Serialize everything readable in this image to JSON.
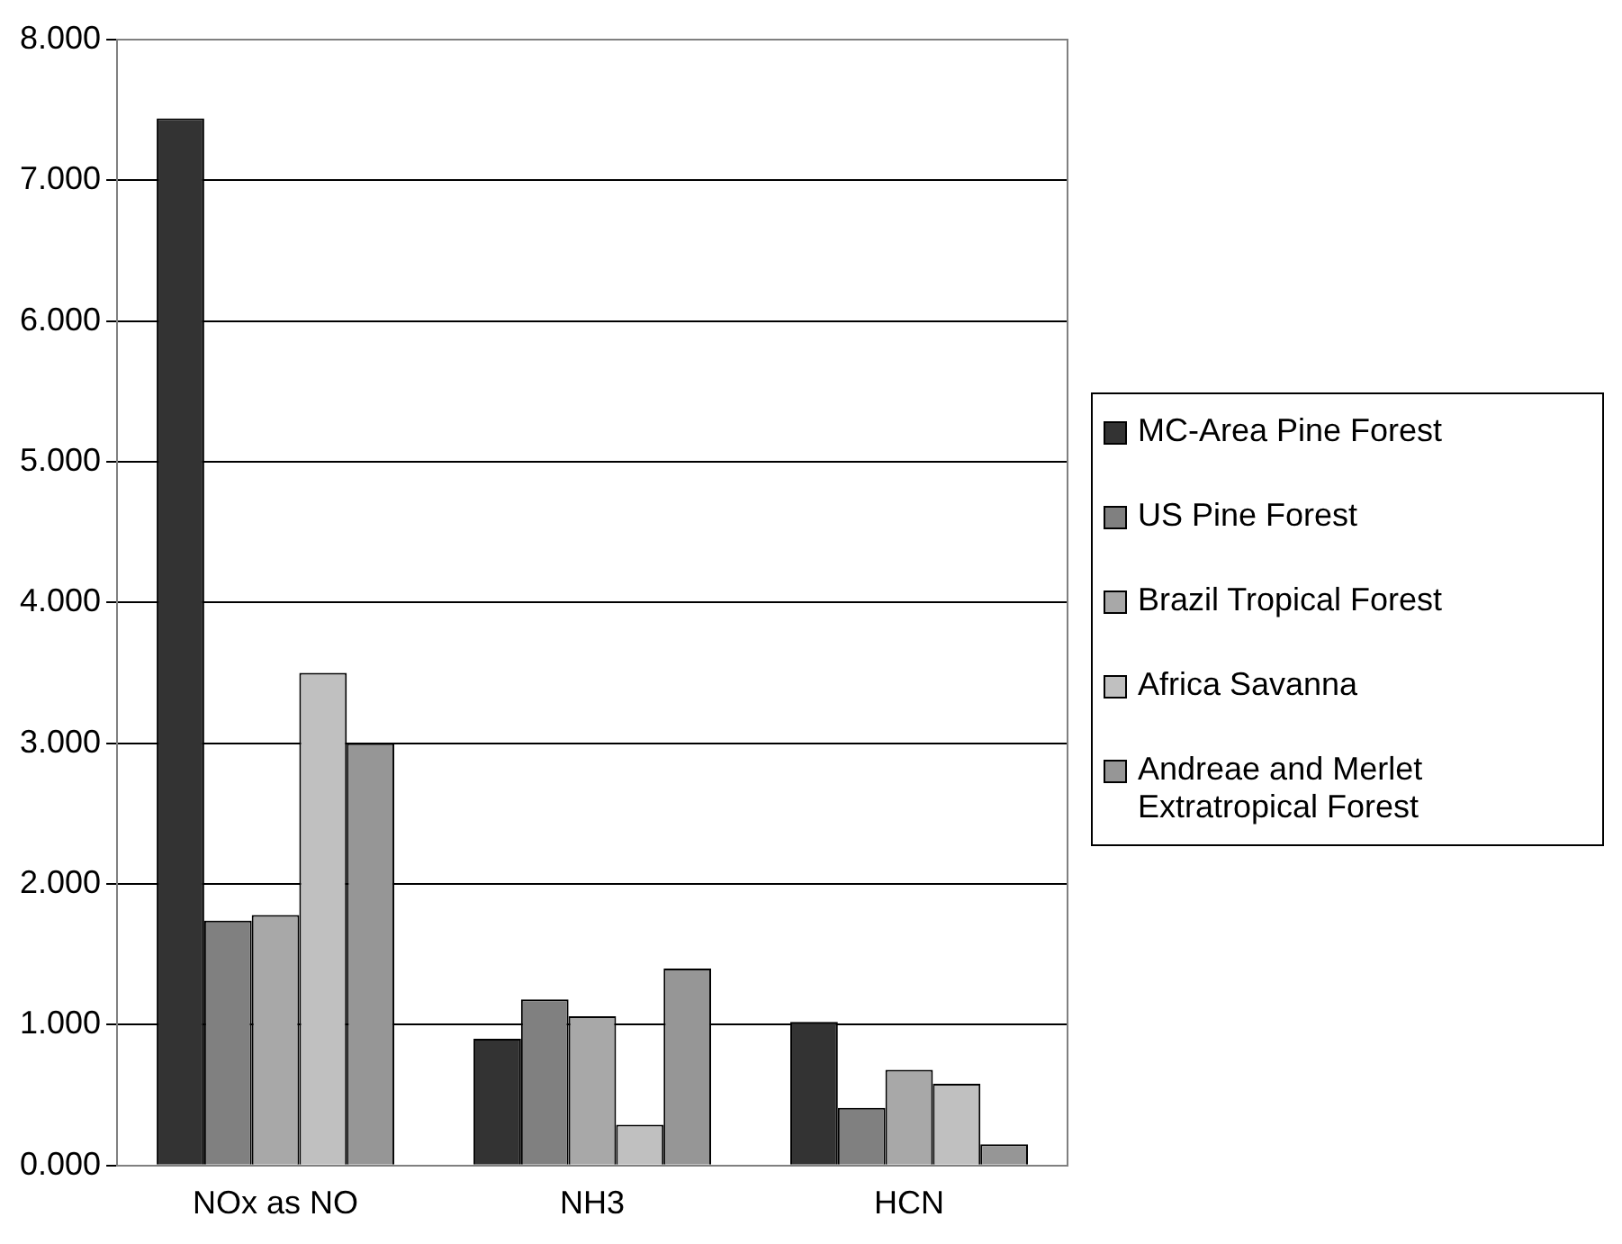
{
  "chart_data": {
    "type": "bar",
    "categories": [
      "NOx as NO",
      "NH3",
      "HCN"
    ],
    "series": [
      {
        "name": "MC-Area Pine Forest",
        "color": "#333333",
        "values": [
          7.44,
          0.9,
          1.02
        ]
      },
      {
        "name": "US Pine Forest",
        "color": "#808080",
        "values": [
          1.74,
          1.18,
          0.41
        ]
      },
      {
        "name": "Brazil Tropical Forest",
        "color": "#a8a8a8",
        "values": [
          1.78,
          1.06,
          0.68
        ]
      },
      {
        "name": "Africa Savanna",
        "color": "#c0c0c0",
        "values": [
          3.5,
          0.29,
          0.58
        ]
      },
      {
        "name": "Andreae and Merlet Extratropical Forest",
        "color": "#969696",
        "values": [
          3.0,
          1.4,
          0.15
        ]
      }
    ],
    "ylim": [
      0,
      8
    ],
    "yticks": [
      {
        "value": 0,
        "label": "0.000"
      },
      {
        "value": 1,
        "label": "1.000"
      },
      {
        "value": 2,
        "label": "2.000"
      },
      {
        "value": 3,
        "label": "3.000"
      },
      {
        "value": 4,
        "label": "4.000"
      },
      {
        "value": 5,
        "label": "5.000"
      },
      {
        "value": 6,
        "label": "6.000"
      },
      {
        "value": 7,
        "label": "7.000"
      },
      {
        "value": 8,
        "label": "8.000"
      }
    ],
    "grid": "y",
    "legend": "right"
  }
}
